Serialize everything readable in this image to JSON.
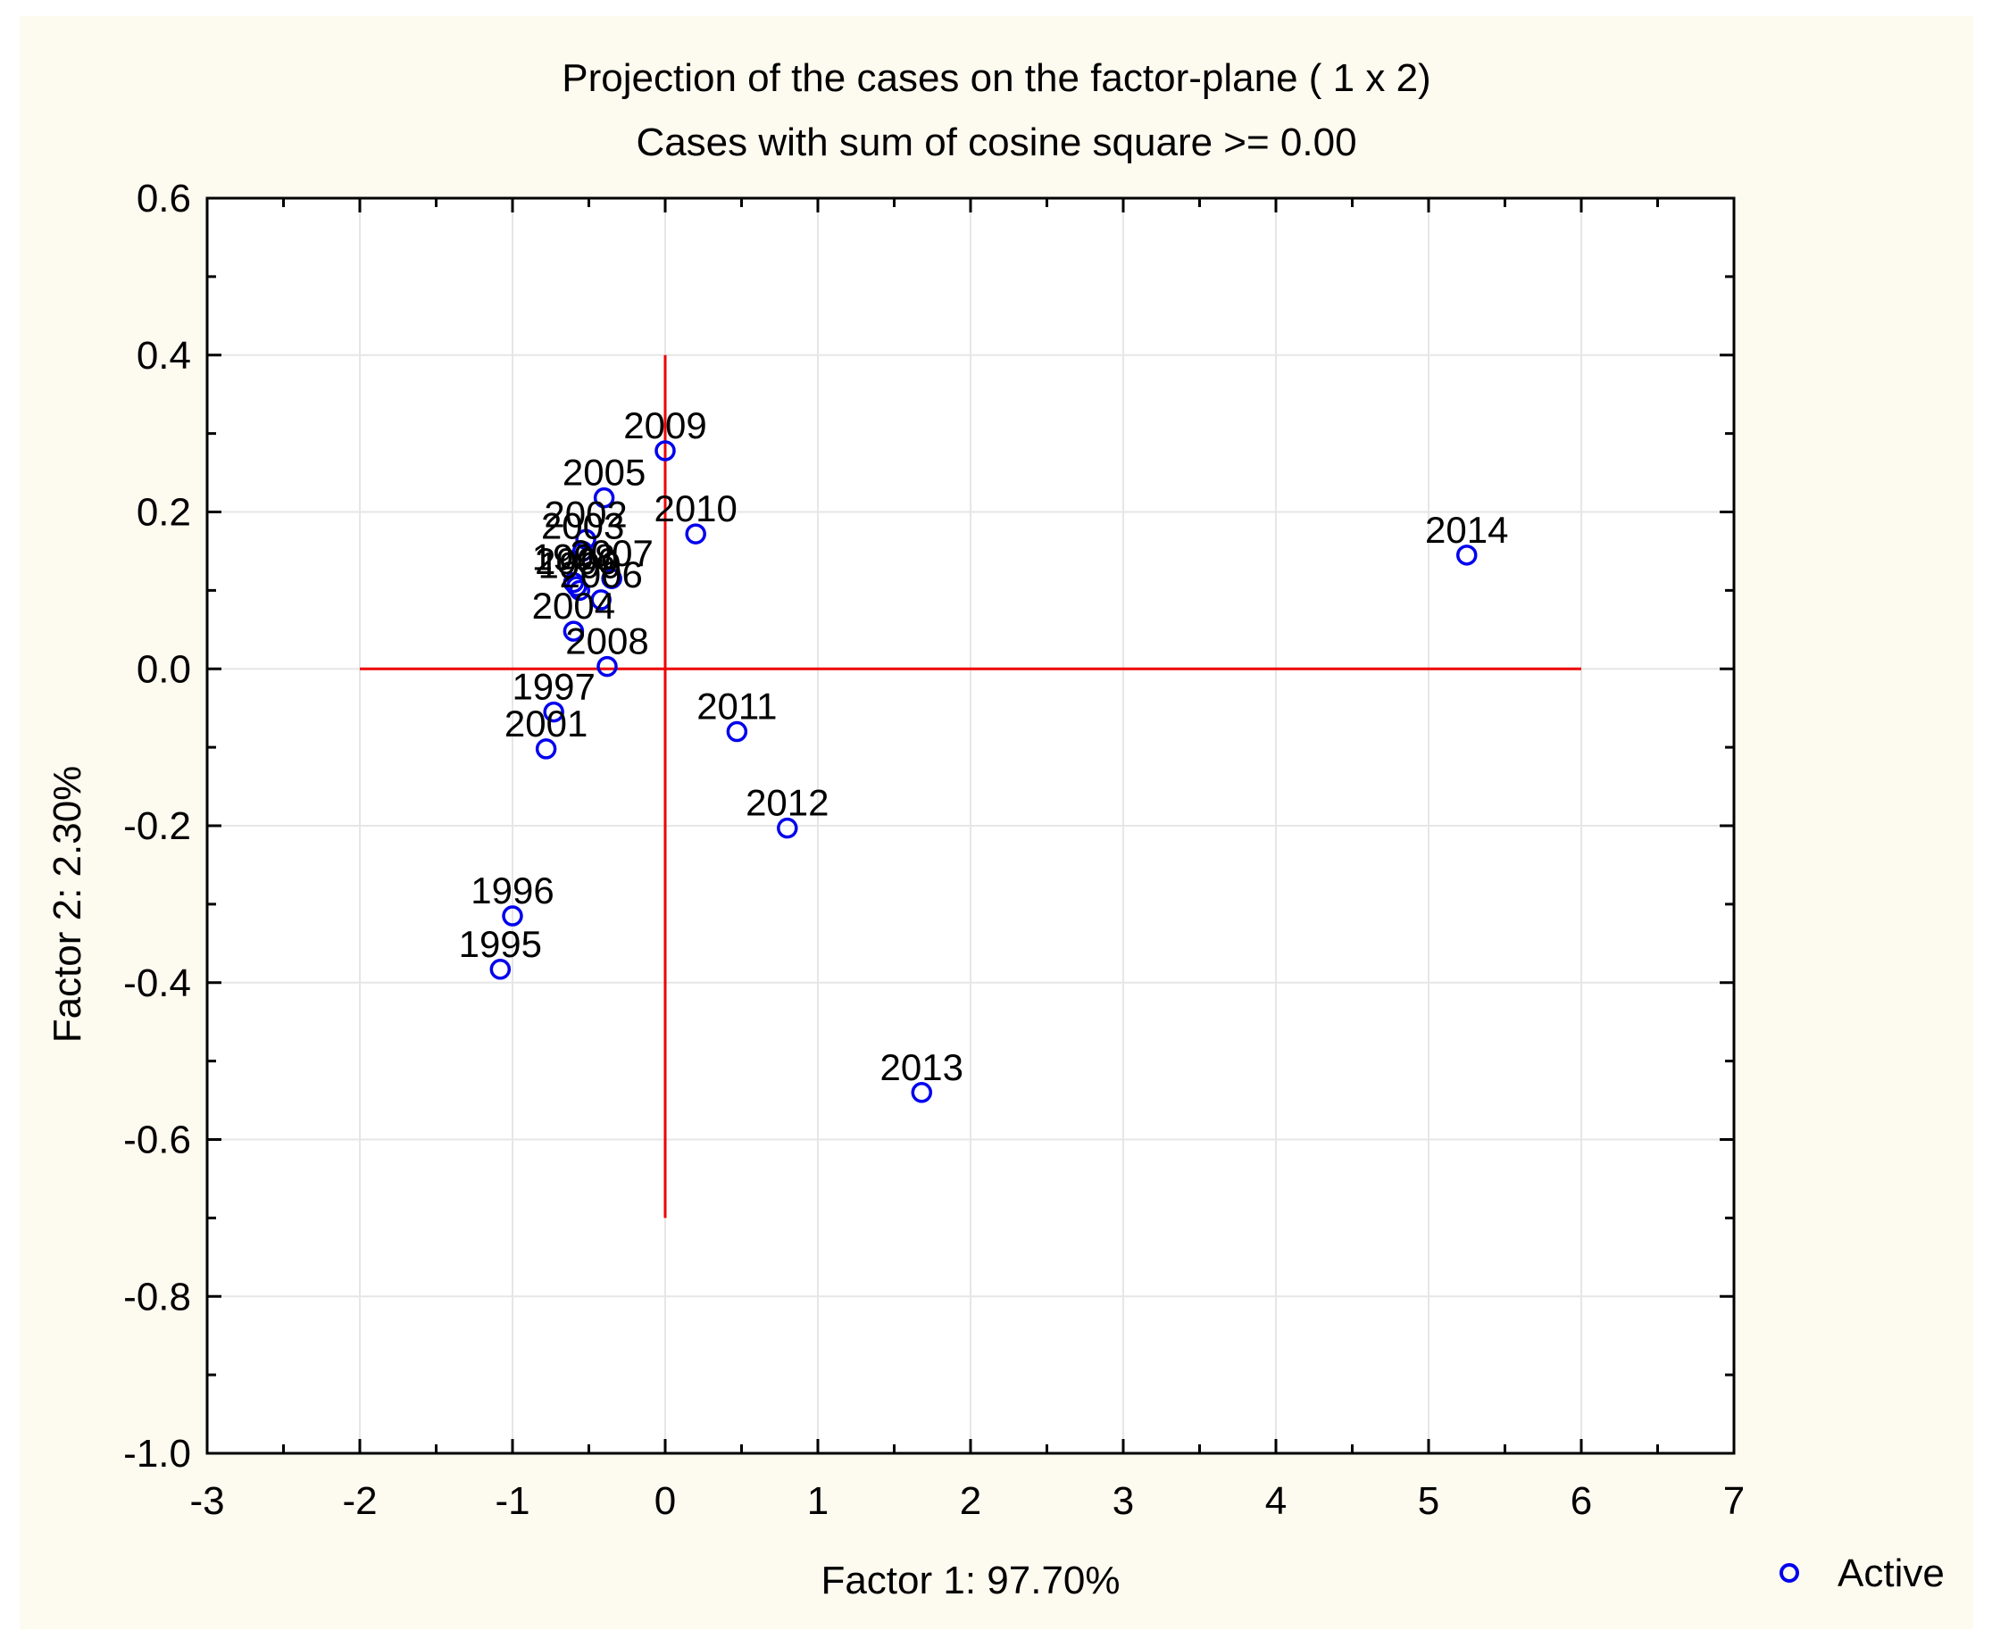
{
  "chart_data": {
    "type": "scatter",
    "title": "Projection of the cases on the factor-plane (  1 x   2)",
    "subtitle": "Cases with sum of cosine square >=  0.00",
    "xlabel": "Factor 1: 97.70%",
    "ylabel": "Factor 2:  2.30%",
    "xlim": [
      -3,
      7
    ],
    "ylim": [
      -1.0,
      0.6
    ],
    "x_ticks": [
      "-3",
      "-2",
      "-1",
      "0",
      "1",
      "2",
      "3",
      "4",
      "5",
      "6",
      "7"
    ],
    "y_ticks": [
      "0.6",
      "0.4",
      "0.2",
      "0.0",
      "-0.2",
      "-0.4",
      "-0.6",
      "-0.8",
      "-1.0"
    ],
    "grid": true,
    "reference_lines": {
      "horizontal": {
        "y": 0.0,
        "x_from": -2.0,
        "x_to": 6.0
      },
      "vertical": {
        "x": 0.0,
        "y_from": -0.7,
        "y_to": 0.4
      }
    },
    "legend": {
      "position": "bottom-right",
      "entries": [
        {
          "name": "Active",
          "marker": "circle-open"
        }
      ]
    },
    "points": [
      {
        "label": "1995",
        "x": -1.08,
        "y": -0.383
      },
      {
        "label": "1996",
        "x": -1.0,
        "y": -0.315
      },
      {
        "label": "1997",
        "x": -0.73,
        "y": -0.055
      },
      {
        "label": "1998",
        "x": -0.6,
        "y": 0.11
      },
      {
        "label": "1999",
        "x": -0.56,
        "y": 0.1
      },
      {
        "label": "2000",
        "x": -0.58,
        "y": 0.105
      },
      {
        "label": "2001",
        "x": -0.78,
        "y": -0.102
      },
      {
        "label": "2002",
        "x": -0.52,
        "y": 0.165
      },
      {
        "label": "2003",
        "x": -0.54,
        "y": 0.15
      },
      {
        "label": "2004",
        "x": -0.6,
        "y": 0.048
      },
      {
        "label": "2005",
        "x": -0.4,
        "y": 0.218
      },
      {
        "label": "2006",
        "x": -0.42,
        "y": 0.088
      },
      {
        "label": "2007",
        "x": -0.35,
        "y": 0.115
      },
      {
        "label": "2008",
        "x": -0.38,
        "y": 0.003
      },
      {
        "label": "2009",
        "x": 0.0,
        "y": 0.278
      },
      {
        "label": "2010",
        "x": 0.2,
        "y": 0.172
      },
      {
        "label": "2011",
        "x": 0.47,
        "y": -0.08
      },
      {
        "label": "2012",
        "x": 0.8,
        "y": -0.203
      },
      {
        "label": "2013",
        "x": 1.68,
        "y": -0.54
      },
      {
        "label": "2014",
        "x": 5.25,
        "y": 0.145
      }
    ]
  },
  "colors": {
    "page_bg": "#fdfaf0",
    "plot_bg": "#ffffff",
    "marker": "#0000ee",
    "reference_line": "#ee0000",
    "grid": "#e6e6e6",
    "axis": "#000000"
  }
}
